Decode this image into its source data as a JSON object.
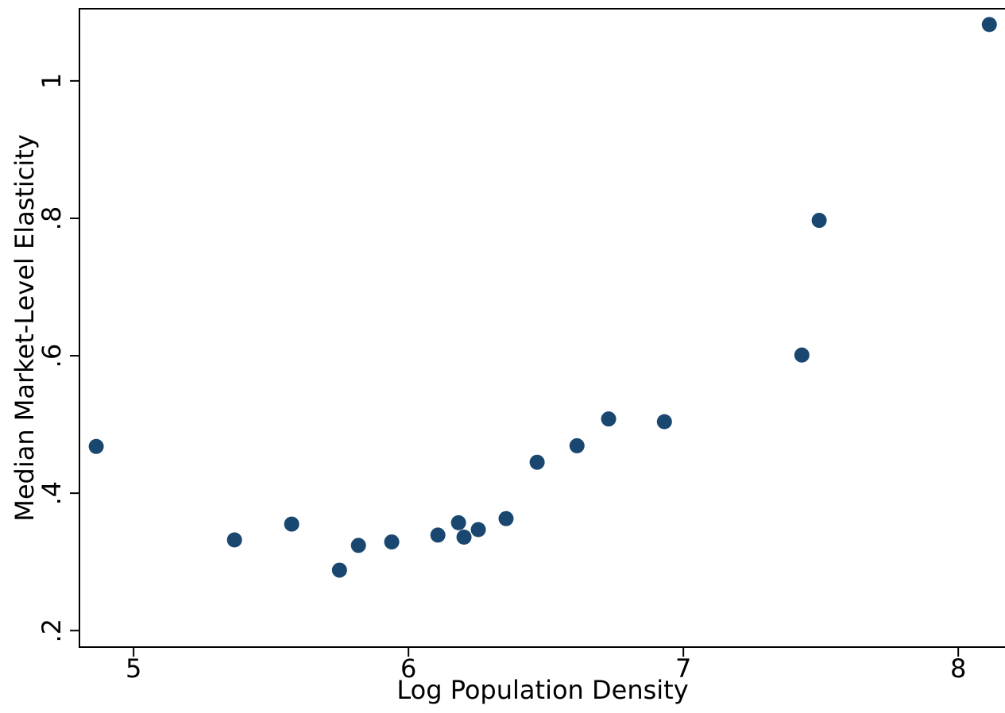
{
  "chart_data": {
    "type": "scatter",
    "x_label": "Log Population Density",
    "y_label": "Median Market-Level Elasticity",
    "color": "#1a476f",
    "x": [
      4.864,
      5.367,
      5.575,
      5.749,
      5.818,
      5.939,
      6.107,
      6.182,
      6.202,
      6.254,
      6.355,
      6.468,
      6.613,
      6.728,
      6.931,
      7.431,
      7.494,
      8.113
    ],
    "values": [
      0.468,
      0.332,
      0.355,
      0.288,
      0.324,
      0.329,
      0.339,
      0.357,
      0.336,
      0.347,
      0.363,
      0.445,
      0.469,
      0.508,
      0.504,
      0.601,
      0.797,
      1.082
    ],
    "xlim": [
      4.803,
      8.17
    ],
    "ylim": [
      0.176,
      1.105
    ],
    "xticks": [
      5,
      6,
      7,
      8
    ],
    "yticks": [
      {
        "value": 0.2,
        "label": ".2"
      },
      {
        "value": 0.4,
        "label": ".4"
      },
      {
        "value": 0.6,
        "label": ".6"
      },
      {
        "value": 0.8,
        "label": ".8"
      },
      1
    ],
    "grid": false
  }
}
